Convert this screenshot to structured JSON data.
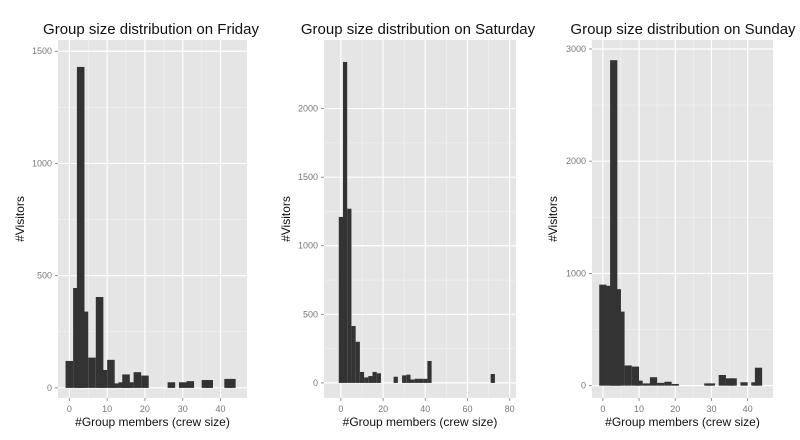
{
  "chart_data": [
    {
      "type": "bar",
      "title": "Group size distribution on Friday",
      "xlabel": "#Group members (crew size)",
      "ylabel": "#Visitors",
      "xlim": [
        -3,
        47
      ],
      "ylim": [
        -45,
        1550
      ],
      "xticks": [
        0,
        10,
        20,
        30,
        40
      ],
      "yticks": [
        0,
        500,
        1000,
        1500
      ],
      "bin_width": 2,
      "x": [
        0,
        2,
        3,
        4,
        6,
        8,
        9,
        11,
        12,
        14,
        15,
        16,
        18,
        20,
        27,
        30,
        32,
        36,
        37,
        42,
        43
      ],
      "values": [
        120,
        445,
        1430,
        340,
        135,
        405,
        80,
        125,
        20,
        25,
        60,
        25,
        70,
        55,
        25,
        25,
        30,
        35,
        35,
        40,
        40
      ]
    },
    {
      "type": "bar",
      "title": "Group size distribution on Saturday",
      "xlabel": "#Group members (crew size)",
      "ylabel": "#Visitors",
      "xlim": [
        -8,
        83
      ],
      "ylim": [
        -110,
        2500
      ],
      "xticks": [
        0,
        20,
        40,
        60,
        80
      ],
      "yticks": [
        0,
        500,
        1000,
        1500,
        2000
      ],
      "bin_width": 2,
      "x": [
        0,
        2,
        4,
        6,
        8,
        10,
        12,
        14,
        16,
        18,
        20,
        22,
        24,
        26,
        28,
        30,
        32,
        34,
        36,
        38,
        40,
        42,
        72
      ],
      "values": [
        1210,
        2340,
        1270,
        415,
        300,
        80,
        40,
        50,
        80,
        70,
        0,
        0,
        0,
        45,
        0,
        55,
        60,
        25,
        30,
        30,
        30,
        160,
        65
      ]
    },
    {
      "type": "bar",
      "title": "Group size distribution on Sunday",
      "xlabel": "#Group members (crew size)",
      "ylabel": "#Visitors",
      "xlim": [
        -3,
        47
      ],
      "ylim": [
        -110,
        3080
      ],
      "xticks": [
        0,
        10,
        20,
        30,
        40
      ],
      "yticks": [
        0,
        1000,
        2000,
        3000
      ],
      "bin_width": 2,
      "x": [
        0,
        2,
        3,
        4,
        5,
        7,
        9,
        10,
        12,
        14,
        16,
        18,
        20,
        29,
        30,
        33,
        35,
        36,
        39,
        42,
        43
      ],
      "values": [
        900,
        890,
        2900,
        860,
        660,
        180,
        170,
        45,
        20,
        75,
        25,
        35,
        15,
        20,
        20,
        95,
        65,
        65,
        30,
        30,
        160
      ]
    }
  ]
}
